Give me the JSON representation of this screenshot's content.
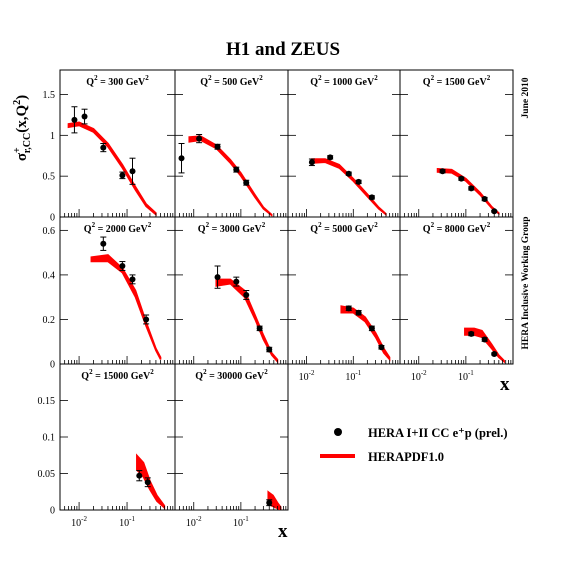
{
  "chart_data": {
    "type": "scatter",
    "title": "H1 and ZEUS",
    "ylabel": {
      "base": "σ",
      "sup": "+",
      "sub": "r,CC",
      "tail": "(x,Q",
      "tail_sup": "2",
      "close": ")"
    },
    "xlabel": "x",
    "x_scale": "log",
    "x_range": [
      0.004,
      1
    ],
    "x_ticks": [
      {
        "value": 0.01,
        "base": "10",
        "exp": "-2"
      },
      {
        "value": 0.1,
        "base": "10",
        "exp": "-1"
      }
    ],
    "legend": {
      "placement": "bottom-right",
      "data_label": "HERA I+II CC e⁺p (prel.)",
      "band_label": "HERAPDF1.0"
    },
    "side_texts": [
      "June 2010",
      "HERA Inclusive Working Group"
    ],
    "panel_prefix": "Q",
    "panel_sup": "2",
    "panel_unit": "GeV",
    "colors": {
      "band": "#ff0000",
      "points": "#000000",
      "frame": "#000000"
    },
    "rows": [
      {
        "ylim": [
          0,
          1.8
        ],
        "yticks": [
          0,
          0.5,
          1,
          1.5
        ],
        "ytick_labels": [
          "0",
          "0.5",
          "1",
          "1.5"
        ]
      },
      {
        "ylim": [
          0,
          0.66
        ],
        "yticks": [
          0,
          0.2,
          0.4,
          0.6
        ],
        "ytick_labels": [
          "0",
          "0.2",
          "0.4",
          "0.6"
        ]
      },
      {
        "ylim": [
          0,
          0.2
        ],
        "yticks": [
          0,
          0.05,
          0.1,
          0.15
        ],
        "ytick_labels": [
          "0",
          "0.05",
          "0.1",
          "0.15"
        ]
      }
    ],
    "panels": [
      {
        "q2": "300",
        "row": 0,
        "col": 0,
        "points": [
          {
            "x": 0.008,
            "y": 1.19,
            "err": 0.16
          },
          {
            "x": 0.013,
            "y": 1.23,
            "err": 0.09
          },
          {
            "x": 0.032,
            "y": 0.85,
            "err": 0.05
          },
          {
            "x": 0.08,
            "y": 0.51,
            "err": 0.04
          },
          {
            "x": 0.13,
            "y": 0.56,
            "err": 0.16
          }
        ],
        "band": [
          {
            "x": 0.006,
            "lo": 1.1,
            "hi": 1.14
          },
          {
            "x": 0.01,
            "lo": 1.12,
            "hi": 1.16
          },
          {
            "x": 0.02,
            "lo": 1.04,
            "hi": 1.08
          },
          {
            "x": 0.04,
            "lo": 0.86,
            "hi": 0.9
          },
          {
            "x": 0.08,
            "lo": 0.6,
            "hi": 0.64
          },
          {
            "x": 0.15,
            "lo": 0.33,
            "hi": 0.37
          },
          {
            "x": 0.25,
            "lo": 0.13,
            "hi": 0.16
          },
          {
            "x": 0.4,
            "lo": 0.03,
            "hi": 0.05
          }
        ]
      },
      {
        "q2": "500",
        "row": 0,
        "col": 1,
        "points": [
          {
            "x": 0.0055,
            "y": 0.72,
            "err": 0.18
          },
          {
            "x": 0.013,
            "y": 0.96,
            "err": 0.05
          },
          {
            "x": 0.032,
            "y": 0.86,
            "err": 0.03
          },
          {
            "x": 0.08,
            "y": 0.58,
            "err": 0.03
          },
          {
            "x": 0.13,
            "y": 0.42,
            "err": 0.03
          }
        ],
        "band": [
          {
            "x": 0.008,
            "lo": 0.92,
            "hi": 0.98
          },
          {
            "x": 0.014,
            "lo": 0.94,
            "hi": 0.99
          },
          {
            "x": 0.03,
            "lo": 0.84,
            "hi": 0.88
          },
          {
            "x": 0.06,
            "lo": 0.66,
            "hi": 0.7
          },
          {
            "x": 0.1,
            "lo": 0.5,
            "hi": 0.54
          },
          {
            "x": 0.2,
            "lo": 0.24,
            "hi": 0.27
          },
          {
            "x": 0.3,
            "lo": 0.1,
            "hi": 0.12
          },
          {
            "x": 0.45,
            "lo": 0.02,
            "hi": 0.03
          }
        ]
      },
      {
        "q2": "1000",
        "row": 0,
        "col": 2,
        "points": [
          {
            "x": 0.013,
            "y": 0.67,
            "err": 0.04
          },
          {
            "x": 0.032,
            "y": 0.73,
            "err": 0.02
          },
          {
            "x": 0.08,
            "y": 0.53,
            "err": 0.02
          },
          {
            "x": 0.13,
            "y": 0.43,
            "err": 0.02
          },
          {
            "x": 0.25,
            "y": 0.24,
            "err": 0.02
          }
        ],
        "band": [
          {
            "x": 0.013,
            "lo": 0.66,
            "hi": 0.71
          },
          {
            "x": 0.025,
            "lo": 0.67,
            "hi": 0.71
          },
          {
            "x": 0.05,
            "lo": 0.6,
            "hi": 0.64
          },
          {
            "x": 0.1,
            "lo": 0.44,
            "hi": 0.47
          },
          {
            "x": 0.2,
            "lo": 0.25,
            "hi": 0.28
          },
          {
            "x": 0.35,
            "lo": 0.1,
            "hi": 0.12
          },
          {
            "x": 0.5,
            "lo": 0.03,
            "hi": 0.04
          }
        ]
      },
      {
        "q2": "1500",
        "row": 0,
        "col": 3,
        "points": [
          {
            "x": 0.032,
            "y": 0.56,
            "err": 0.02
          },
          {
            "x": 0.08,
            "y": 0.47,
            "err": 0.02
          },
          {
            "x": 0.13,
            "y": 0.35,
            "err": 0.02
          },
          {
            "x": 0.25,
            "y": 0.22,
            "err": 0.02
          },
          {
            "x": 0.4,
            "y": 0.07,
            "err": 0.01
          }
        ],
        "band": [
          {
            "x": 0.025,
            "lo": 0.55,
            "hi": 0.59
          },
          {
            "x": 0.05,
            "lo": 0.54,
            "hi": 0.58
          },
          {
            "x": 0.1,
            "lo": 0.44,
            "hi": 0.47
          },
          {
            "x": 0.2,
            "lo": 0.27,
            "hi": 0.3
          },
          {
            "x": 0.35,
            "lo": 0.11,
            "hi": 0.13
          },
          {
            "x": 0.5,
            "lo": 0.04,
            "hi": 0.05
          }
        ]
      },
      {
        "q2": "2000",
        "row": 1,
        "col": 0,
        "points": [
          {
            "x": 0.032,
            "y": 0.54,
            "err": 0.03
          },
          {
            "x": 0.08,
            "y": 0.44,
            "err": 0.02
          },
          {
            "x": 0.13,
            "y": 0.38,
            "err": 0.02
          },
          {
            "x": 0.25,
            "y": 0.2,
            "err": 0.02
          }
        ],
        "band": [
          {
            "x": 0.018,
            "lo": 0.46,
            "hi": 0.48
          },
          {
            "x": 0.04,
            "lo": 0.46,
            "hi": 0.49
          },
          {
            "x": 0.08,
            "lo": 0.41,
            "hi": 0.43
          },
          {
            "x": 0.15,
            "lo": 0.3,
            "hi": 0.33
          },
          {
            "x": 0.25,
            "lo": 0.17,
            "hi": 0.19
          },
          {
            "x": 0.4,
            "lo": 0.06,
            "hi": 0.07
          },
          {
            "x": 0.5,
            "lo": 0.02,
            "hi": 0.03
          }
        ]
      },
      {
        "q2": "3000",
        "row": 1,
        "col": 1,
        "points": [
          {
            "x": 0.032,
            "y": 0.39,
            "err": 0.05
          },
          {
            "x": 0.08,
            "y": 0.37,
            "err": 0.02
          },
          {
            "x": 0.13,
            "y": 0.31,
            "err": 0.02
          },
          {
            "x": 0.25,
            "y": 0.16,
            "err": 0.01
          },
          {
            "x": 0.4,
            "y": 0.065,
            "err": 0.01
          }
        ],
        "band": [
          {
            "x": 0.03,
            "lo": 0.35,
            "hi": 0.38
          },
          {
            "x": 0.06,
            "lo": 0.36,
            "hi": 0.38
          },
          {
            "x": 0.12,
            "lo": 0.3,
            "hi": 0.33
          },
          {
            "x": 0.2,
            "lo": 0.2,
            "hi": 0.22
          },
          {
            "x": 0.3,
            "lo": 0.11,
            "hi": 0.13
          },
          {
            "x": 0.45,
            "lo": 0.04,
            "hi": 0.05
          },
          {
            "x": 0.6,
            "lo": 0.01,
            "hi": 0.02
          }
        ]
      },
      {
        "q2": "5000",
        "row": 1,
        "col": 2,
        "points": [
          {
            "x": 0.08,
            "y": 0.25,
            "err": 0.01
          },
          {
            "x": 0.13,
            "y": 0.23,
            "err": 0.01
          },
          {
            "x": 0.25,
            "y": 0.16,
            "err": 0.01
          },
          {
            "x": 0.4,
            "y": 0.075,
            "err": 0.008
          }
        ],
        "band": [
          {
            "x": 0.055,
            "lo": 0.23,
            "hi": 0.26
          },
          {
            "x": 0.1,
            "lo": 0.23,
            "hi": 0.25
          },
          {
            "x": 0.18,
            "lo": 0.19,
            "hi": 0.21
          },
          {
            "x": 0.3,
            "lo": 0.12,
            "hi": 0.14
          },
          {
            "x": 0.45,
            "lo": 0.05,
            "hi": 0.07
          },
          {
            "x": 0.6,
            "lo": 0.02,
            "hi": 0.03
          }
        ]
      },
      {
        "q2": "8000",
        "row": 1,
        "col": 3,
        "points": [
          {
            "x": 0.13,
            "y": 0.135,
            "err": 0.008
          },
          {
            "x": 0.25,
            "y": 0.11,
            "err": 0.008
          },
          {
            "x": 0.4,
            "y": 0.045,
            "err": 0.005
          }
        ],
        "band": [
          {
            "x": 0.095,
            "lo": 0.13,
            "hi": 0.16
          },
          {
            "x": 0.15,
            "lo": 0.13,
            "hi": 0.16
          },
          {
            "x": 0.22,
            "lo": 0.12,
            "hi": 0.15
          },
          {
            "x": 0.35,
            "lo": 0.07,
            "hi": 0.09
          },
          {
            "x": 0.5,
            "lo": 0.03,
            "hi": 0.04
          },
          {
            "x": 0.65,
            "lo": 0.01,
            "hi": 0.015
          }
        ]
      },
      {
        "q2": "15000",
        "row": 2,
        "col": 0,
        "points": [
          {
            "x": 0.18,
            "y": 0.047,
            "err": 0.007
          },
          {
            "x": 0.27,
            "y": 0.038,
            "err": 0.006
          }
        ],
        "band": [
          {
            "x": 0.16,
            "lo": 0.055,
            "hi": 0.075
          },
          {
            "x": 0.22,
            "lo": 0.045,
            "hi": 0.065
          },
          {
            "x": 0.3,
            "lo": 0.028,
            "hi": 0.04
          },
          {
            "x": 0.42,
            "lo": 0.012,
            "hi": 0.02
          },
          {
            "x": 0.6,
            "lo": 0.003,
            "hi": 0.006
          }
        ]
      },
      {
        "q2": "30000",
        "row": 2,
        "col": 1,
        "points": [
          {
            "x": 0.4,
            "y": 0.01,
            "err": 0.004
          }
        ],
        "band": [
          {
            "x": 0.38,
            "lo": 0.008,
            "hi": 0.025
          },
          {
            "x": 0.48,
            "lo": 0.005,
            "hi": 0.02
          },
          {
            "x": 0.6,
            "lo": 0.002,
            "hi": 0.01
          },
          {
            "x": 0.7,
            "lo": 0.0,
            "hi": 0.004
          }
        ]
      }
    ]
  }
}
